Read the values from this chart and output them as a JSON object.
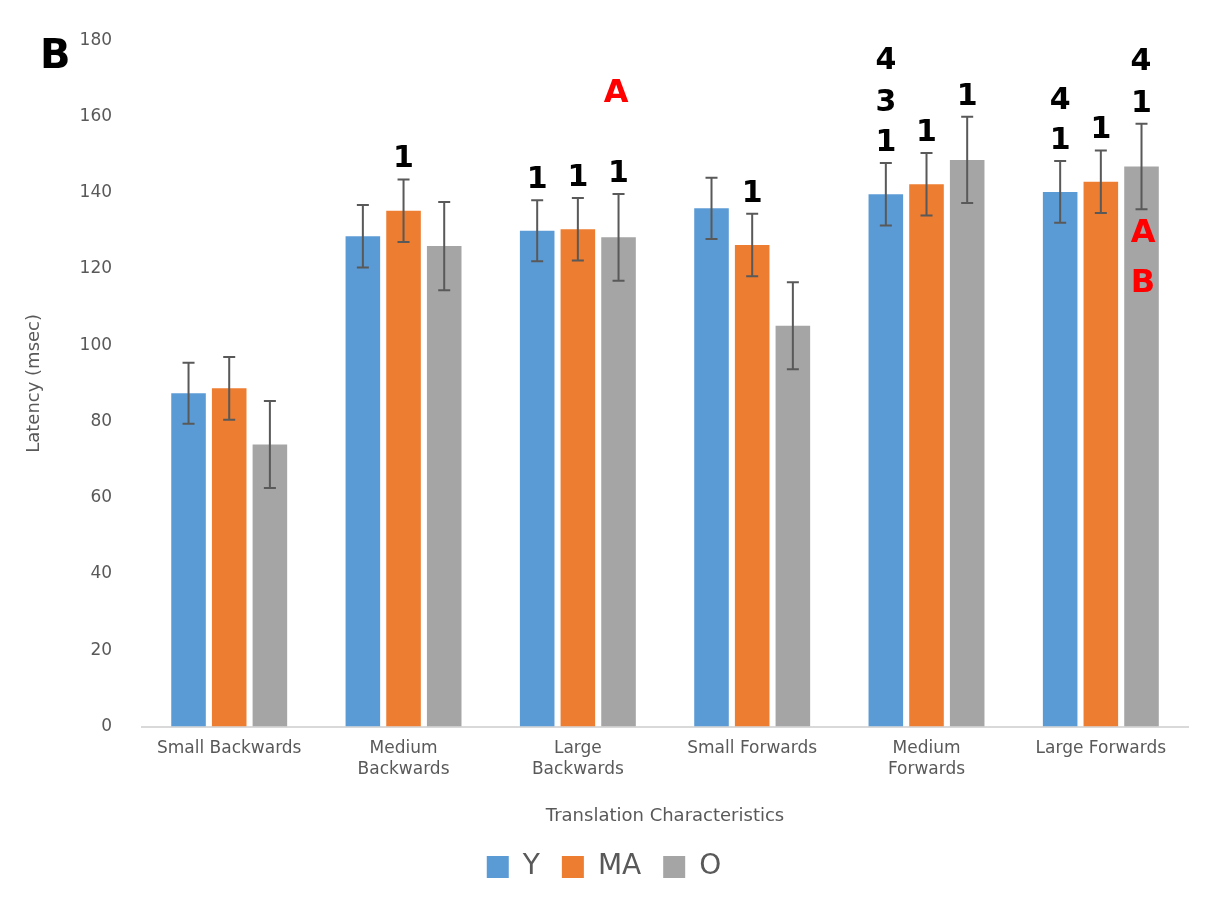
{
  "chart_data": {
    "type": "bar",
    "xlabel": "Translation Characteristics",
    "ylabel": "Latency (msec)",
    "categories": [
      "Small Backwards",
      "Medium Backwards",
      "Large Backwards",
      "Small Forwards",
      "Medium Forwards",
      "Large Forwards"
    ],
    "series": [
      {
        "name": "Y",
        "color": "#5b9bd5",
        "values": [
          87.4,
          128.6,
          130,
          135.9,
          139.6,
          140.2
        ],
        "errors": [
          8,
          8.2,
          8,
          8,
          8.2,
          8.1
        ]
      },
      {
        "name": "MA",
        "color": "#ed7d31",
        "values": [
          88.7,
          135.3,
          130.4,
          126.3,
          142.2,
          142.9
        ],
        "errors": [
          8.2,
          8.2,
          8.2,
          8.2,
          8.2,
          8.2
        ]
      },
      {
        "name": "O",
        "color": "#a5a5a5",
        "values": [
          74,
          126,
          128.3,
          105.1,
          148.6,
          146.9
        ],
        "errors": [
          11.4,
          11.6,
          11.4,
          11.4,
          11.3,
          11.2
        ]
      }
    ],
    "ylim": [
      0,
      180
    ],
    "yticks": [
      0,
      20,
      40,
      60,
      80,
      100,
      120,
      140,
      160,
      180
    ],
    "grid": false,
    "legend": "bottom",
    "annotations": [
      "B",
      "A",
      "A",
      "B",
      "4",
      "4",
      {
        "text": "1",
        "x": "Medium Backwards",
        "y": 135.3
      },
      {
        "text": "1",
        "x": "Large Backwards",
        "y": 130
      },
      {
        "text": "1",
        "x": "Large Backwards",
        "y": 130.4
      },
      {
        "text": "1",
        "x": "Large Backwards",
        "y": 128.3
      },
      {
        "text": "1",
        "x": "Small Forwards",
        "y": 126.3
      },
      {
        "text": "1",
        "x": "Medium Forwards",
        "y": 139.6
      },
      {
        "text": "3",
        "x": "Medium Forwards",
        "y": 139.6
      },
      {
        "text": "1",
        "x": "Medium Forwards",
        "y": 142.2
      },
      {
        "text": "1",
        "x": "Medium Forwards",
        "y": 148.6
      },
      {
        "text": "1",
        "x": "Large Forwards",
        "y": 140.2
      },
      {
        "text": "4",
        "x": "Large Forwards",
        "y": 140.2
      },
      {
        "text": "1",
        "x": "Large Forwards",
        "y": 142.9
      },
      {
        "text": "1",
        "x": "Large Forwards",
        "y": 146.9
      }
    ]
  }
}
